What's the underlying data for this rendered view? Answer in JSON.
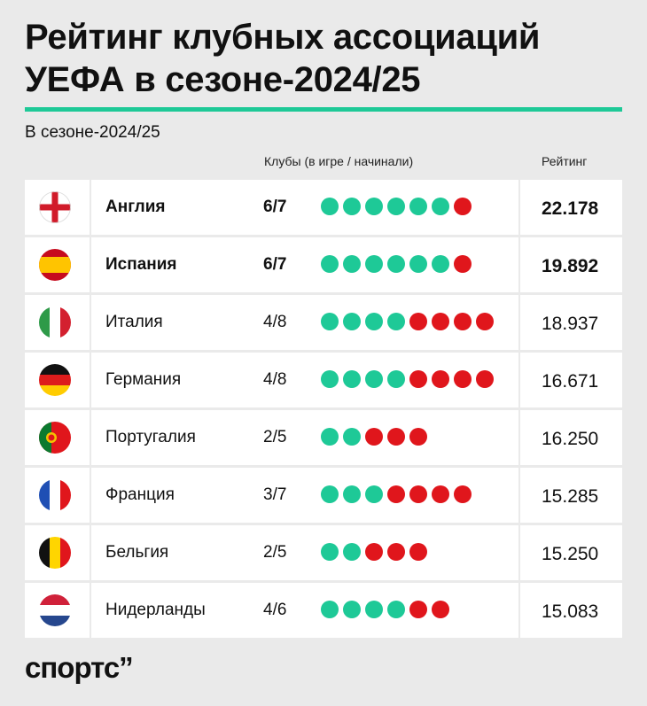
{
  "title_line1": "Рейтинг клубных ассоциаций",
  "title_line2": "УЕФА в сезоне-2024/25",
  "subtitle": "В сезоне-2024/25",
  "header": {
    "clubs": "Клубы (в игре / начинали)",
    "rating": "Рейтинг"
  },
  "colors": {
    "accent": "#1ec997",
    "in_game": "#1ec997",
    "eliminated": "#e0161c"
  },
  "rows": [
    {
      "flag": "england-flag-icon",
      "country": "Англия",
      "clubs": "6/7",
      "in_game": 6,
      "total": 7,
      "rating": "22.178",
      "bold": true
    },
    {
      "flag": "spain-flag-icon",
      "country": "Испания",
      "clubs": "6/7",
      "in_game": 6,
      "total": 7,
      "rating": "19.892",
      "bold": true
    },
    {
      "flag": "italy-flag-icon",
      "country": "Италия",
      "clubs": "4/8",
      "in_game": 4,
      "total": 8,
      "rating": "18.937",
      "bold": false
    },
    {
      "flag": "germany-flag-icon",
      "country": "Германия",
      "clubs": "4/8",
      "in_game": 4,
      "total": 8,
      "rating": "16.671",
      "bold": false
    },
    {
      "flag": "portugal-flag-icon",
      "country": "Португалия",
      "clubs": "2/5",
      "in_game": 2,
      "total": 5,
      "rating": "16.250",
      "bold": false
    },
    {
      "flag": "france-flag-icon",
      "country": "Франция",
      "clubs": "3/7",
      "in_game": 3,
      "total": 7,
      "rating": "15.285",
      "bold": false
    },
    {
      "flag": "belgium-flag-icon",
      "country": "Бельгия",
      "clubs": "2/5",
      "in_game": 2,
      "total": 5,
      "rating": "15.250",
      "bold": false
    },
    {
      "flag": "netherlands-flag-icon",
      "country": "Нидерланды",
      "clubs": "4/6",
      "in_game": 4,
      "total": 6,
      "rating": "15.083",
      "bold": false
    }
  ],
  "logo": "спортс’’"
}
